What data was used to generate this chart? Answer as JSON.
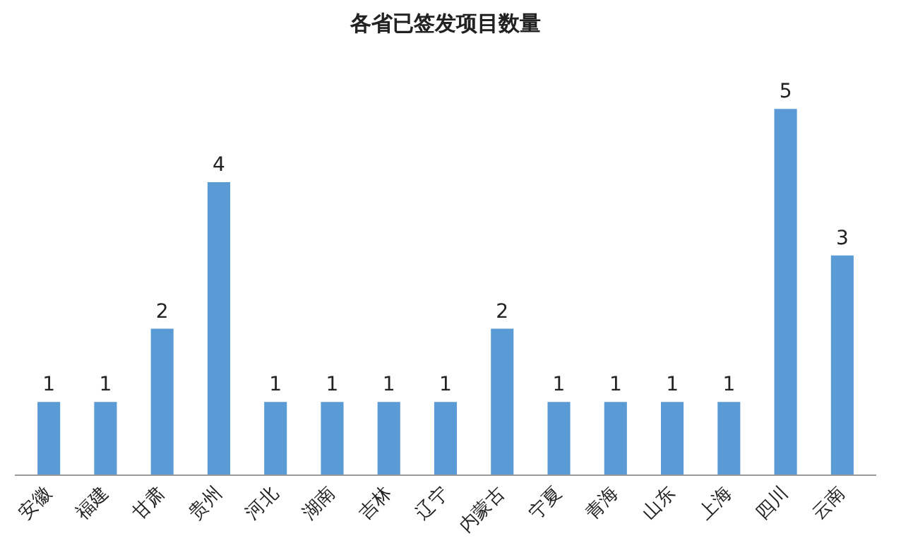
{
  "chart_data": {
    "type": "bar",
    "title": "各省已签发项目数量",
    "categories": [
      "安徽",
      "福建",
      "甘肃",
      "贵州",
      "河北",
      "湖南",
      "吉林",
      "辽宁",
      "内蒙古",
      "宁夏",
      "青海",
      "山东",
      "上海",
      "四川",
      "云南"
    ],
    "values": [
      1,
      1,
      2,
      4,
      1,
      1,
      1,
      1,
      2,
      1,
      1,
      1,
      1,
      5,
      3
    ],
    "color": "#5b9bd5",
    "data_labels": true,
    "grid": false
  }
}
